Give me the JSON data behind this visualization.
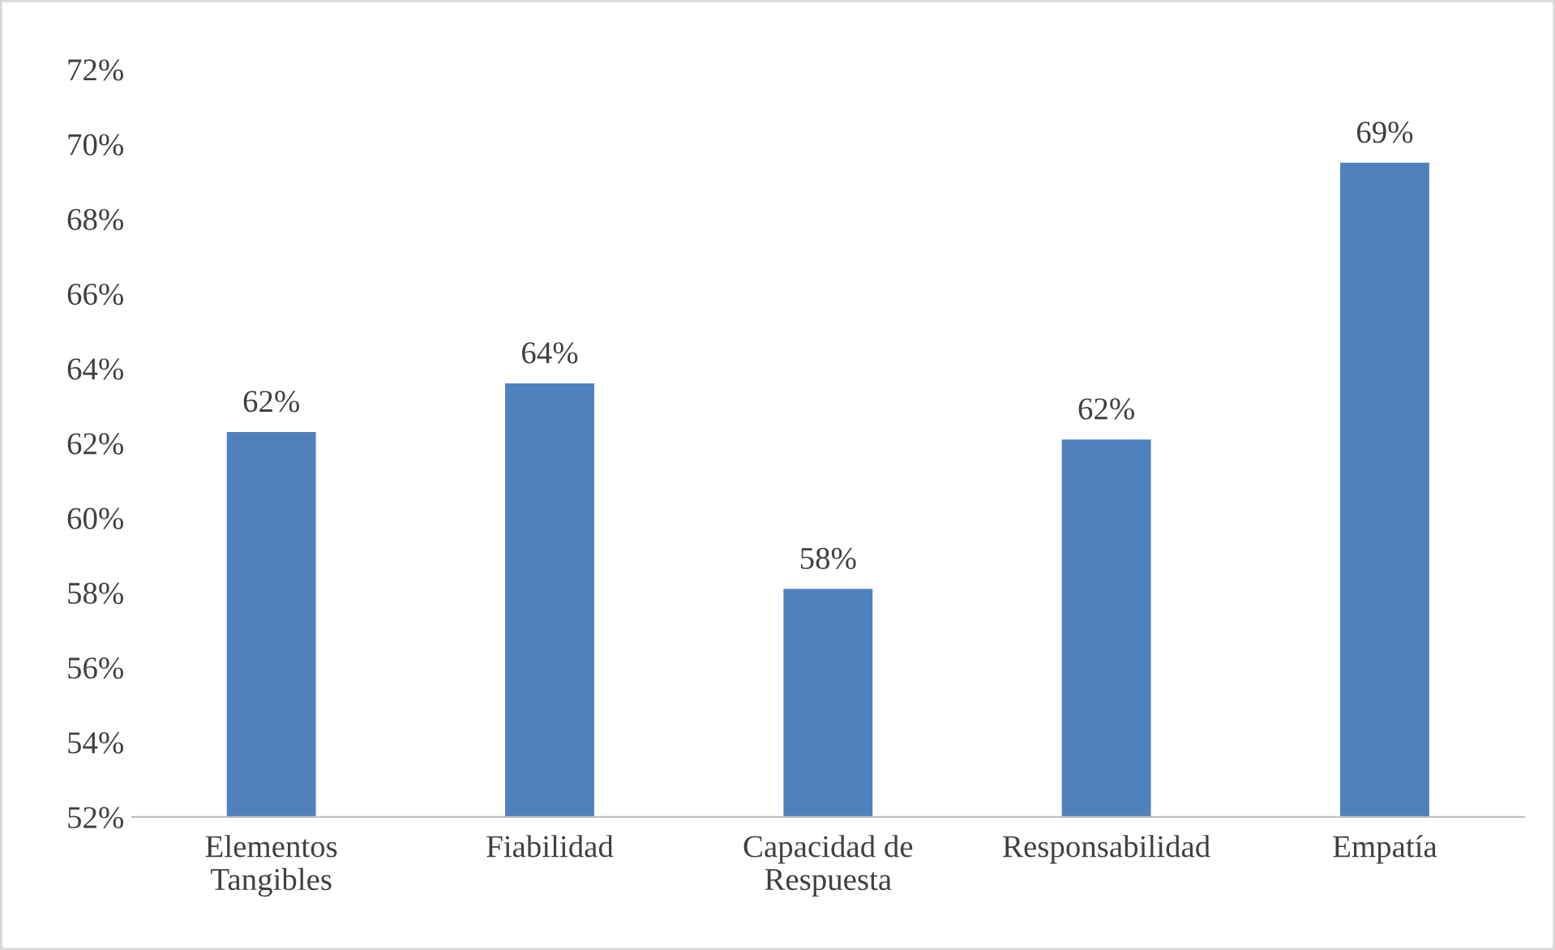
{
  "chart_data": {
    "type": "bar",
    "categories": [
      "Elementos\nTangibles",
      "Fiabilidad",
      "Capacidad de\nRespuesta",
      "Responsabilidad",
      "Empatía"
    ],
    "values": [
      62.3,
      63.6,
      58.1,
      62.1,
      69.5
    ],
    "value_labels": [
      "62%",
      "64%",
      "58%",
      "62%",
      "69%"
    ],
    "color": "#4f81bd",
    "ylim": [
      52,
      72
    ],
    "yticks": [
      {
        "value": 52,
        "label": "52%"
      },
      {
        "value": 54,
        "label": "54%"
      },
      {
        "value": 56,
        "label": "56%"
      },
      {
        "value": 58,
        "label": "58%"
      },
      {
        "value": 60,
        "label": "60%"
      },
      {
        "value": 62,
        "label": "62%"
      },
      {
        "value": 64,
        "label": "64%"
      },
      {
        "value": 66,
        "label": "66%"
      },
      {
        "value": 68,
        "label": "68%"
      },
      {
        "value": 70,
        "label": "70%"
      },
      {
        "value": 72,
        "label": "72%"
      }
    ],
    "grid": false,
    "legend": false
  }
}
